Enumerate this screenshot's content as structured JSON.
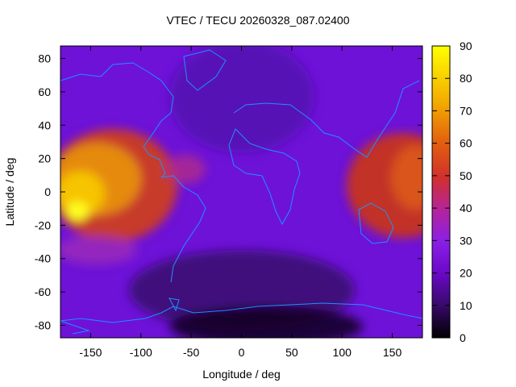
{
  "title": "VTEC / TECU 20260328_087.02400",
  "xlabel": "Longitude / deg",
  "ylabel": "Latitude / deg",
  "chart_data": {
    "type": "heatmap",
    "title": "VTEC / TECU 20260328_087.02400",
    "xlabel": "Longitude / deg",
    "ylabel": "Latitude / deg",
    "xlim": [
      -180,
      180
    ],
    "ylim": [
      -87.5,
      87.5
    ],
    "x_ticks": [
      -150,
      -100,
      -50,
      0,
      50,
      100,
      150
    ],
    "y_ticks": [
      -80,
      -60,
      -40,
      -20,
      0,
      20,
      40,
      60,
      80
    ],
    "colorbar": {
      "range": [
        0,
        90
      ],
      "ticks": [
        0,
        10,
        20,
        30,
        40,
        50,
        60,
        70,
        80,
        90
      ],
      "colormap": "gnuplot-pm3d",
      "stops": [
        "#000000",
        "#3b0a70",
        "#6a08c8",
        "#8a1fe6",
        "#b5249a",
        "#d1302b",
        "#e2600f",
        "#f2a800",
        "#ffff00"
      ]
    },
    "coastline_color": "#1e90ff",
    "features": [
      {
        "lon": -150,
        "lat": 10,
        "vtec": 70
      },
      {
        "lon": -165,
        "lat": -13,
        "vtec": 85
      },
      {
        "lon": 160,
        "lat": 5,
        "vtec": 60
      },
      {
        "lon": 20,
        "lat": -80,
        "vtec": 3
      },
      {
        "lon": 30,
        "lat": -55,
        "vtec": 6
      }
    ]
  }
}
